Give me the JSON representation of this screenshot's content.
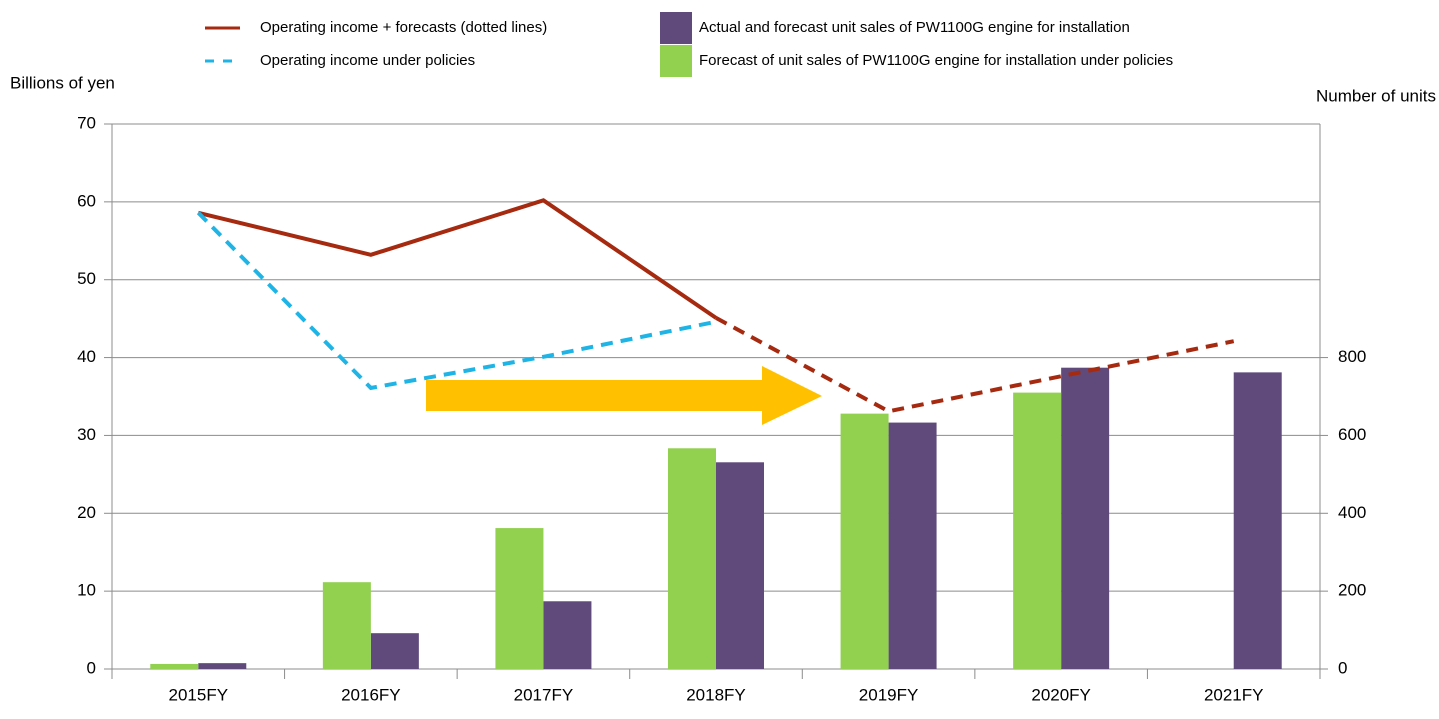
{
  "chart_data": {
    "type": "bar_line",
    "categories": [
      "2015FY",
      "2016FY",
      "2017FY",
      "2018FY",
      "2019FY",
      "2020FY",
      "2021FY"
    ],
    "ylabel": "Billions of yen",
    "y2label": "Number of units",
    "ylim": [
      0,
      70
    ],
    "yticks": [
      0,
      10,
      20,
      30,
      40,
      50,
      60,
      70
    ],
    "y2lim": [
      0,
      1400
    ],
    "y2ticks": [
      0,
      200,
      400,
      600,
      800
    ],
    "grid": true,
    "series": [
      {
        "name": "Operating income + forecasts (dotted lines)",
        "type": "line",
        "color": "#a52a0f",
        "dashed_from": 3,
        "values": [
          58.6,
          53.2,
          60.2,
          45.1,
          33.1,
          37.6,
          42.1
        ]
      },
      {
        "name": "Operating income under policies",
        "type": "line",
        "color": "#1fb4e6",
        "dashed": true,
        "values": [
          58.6,
          36.1,
          40.1,
          44.6,
          null,
          null,
          null
        ]
      },
      {
        "name": "Actual and forecast unit sales of PW1100G engine for installation",
        "type": "bar",
        "axis": "y2",
        "color": "#604a7b",
        "values": [
          15,
          92,
          174,
          531,
          633,
          774,
          762
        ]
      },
      {
        "name": "Forecast of unit sales of PW1100G  engine for installation under policies",
        "type": "bar",
        "axis": "y2",
        "color": "#92d050",
        "values": [
          13,
          223,
          362,
          567,
          656,
          710,
          null
        ]
      }
    ]
  }
}
